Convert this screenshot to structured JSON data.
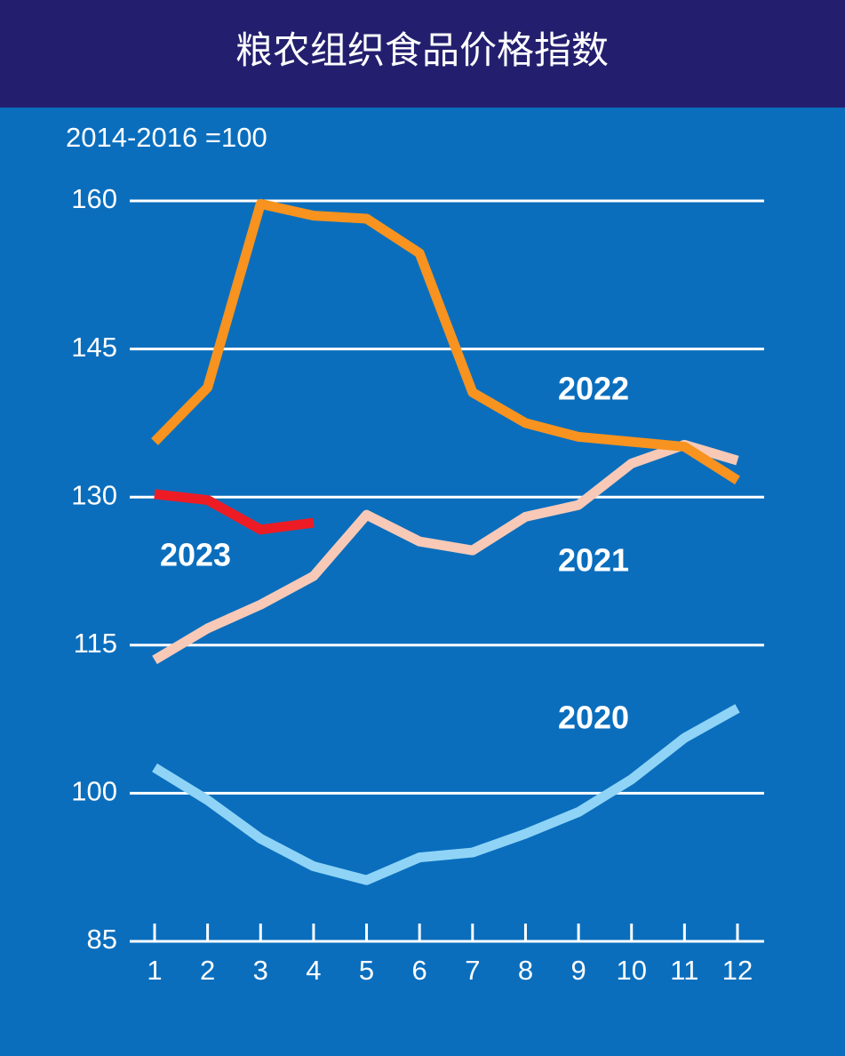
{
  "chart_data": {
    "type": "line",
    "title": "粮农组织食品价格指数",
    "subtitle": "2014-2016 =100",
    "categories": [
      "1",
      "2",
      "3",
      "4",
      "5",
      "6",
      "7",
      "8",
      "9",
      "10",
      "11",
      "12"
    ],
    "ylim": [
      85,
      160
    ],
    "yticks": [
      85,
      100,
      115,
      130,
      145,
      160
    ],
    "grid": true,
    "series": [
      {
        "name": "2020",
        "color": "#8fd4f6",
        "values": [
          102.6,
          99.3,
          95.4,
          92.6,
          91.2,
          93.5,
          94.0,
          95.9,
          98.1,
          101.4,
          105.6,
          108.6
        ]
      },
      {
        "name": "2021",
        "color": "#f8c9b6",
        "values": [
          113.5,
          116.7,
          119.1,
          122.0,
          128.2,
          125.5,
          124.6,
          128.0,
          129.2,
          133.4,
          135.3,
          133.7
        ]
      },
      {
        "name": "2022",
        "color": "#f7931e",
        "values": [
          135.6,
          141.1,
          159.7,
          158.5,
          158.2,
          154.7,
          140.6,
          137.5,
          136.1,
          135.6,
          135.1,
          131.7
        ]
      },
      {
        "name": "2023",
        "color": "#ed1c24",
        "values": [
          130.3,
          129.7,
          126.7,
          127.4,
          null,
          null,
          null,
          null,
          null,
          null,
          null,
          null
        ]
      }
    ]
  }
}
